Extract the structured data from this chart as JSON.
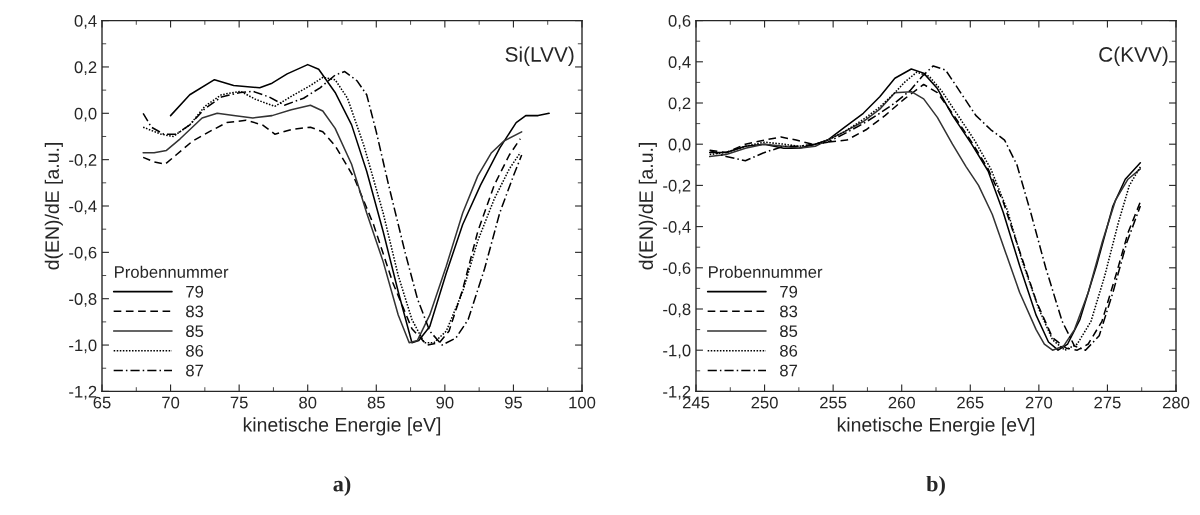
{
  "chart_data": [
    {
      "type": "line",
      "ylabel": "d(EN)/dE [a.u.]",
      "xlabel": "kinetische Energie [eV]",
      "legend_title": "Probennummer",
      "legend": "bottom left",
      "annotations": [
        "Si(LVV)",
        "a)"
      ],
      "xlim": [
        65,
        100
      ],
      "xticks": [
        65,
        70,
        75,
        80,
        85,
        90,
        95,
        100
      ],
      "ylim": [
        -1.2,
        0.4
      ],
      "yticks": [
        {
          "value": -1.2,
          "label": "-1,2"
        },
        {
          "value": -1.0,
          "label": "-1,0"
        },
        {
          "value": -0.8,
          "label": "-0,8"
        },
        {
          "value": -0.6,
          "label": "-0,6"
        },
        {
          "value": -0.4,
          "label": "-0,4"
        },
        {
          "value": -0.2,
          "label": "-0,2"
        },
        {
          "value": 0.0,
          "label": "0,0"
        },
        {
          "value": 0.2,
          "label": "0,2"
        },
        {
          "value": 0.4,
          "label": "0,4"
        }
      ],
      "series": [
        {
          "name": "79",
          "color": "#000000",
          "line_style": "solid",
          "x": [
            70,
            71.4,
            73.2,
            74.6,
            76.5,
            77.4,
            78.5,
            80.0,
            80.8,
            82.0,
            83.2,
            84.3,
            85.5,
            86.6,
            87.6,
            88.1,
            88.9,
            90.1,
            91.3,
            92.6,
            94.0,
            95.2,
            95.9,
            96.8,
            97.6
          ],
          "values": [
            -0.01,
            0.08,
            0.145,
            0.12,
            0.11,
            0.13,
            0.17,
            0.21,
            0.19,
            0.09,
            -0.05,
            -0.25,
            -0.51,
            -0.77,
            -0.99,
            -0.98,
            -0.92,
            -0.69,
            -0.48,
            -0.31,
            -0.15,
            -0.04,
            -0.01,
            -0.01,
            0.0
          ]
        },
        {
          "name": "83",
          "color": "#000000",
          "line_style": "dashed",
          "x": [
            68.0,
            68.8,
            69.6,
            70.4,
            71.6,
            72.8,
            74.1,
            75.5,
            76.7,
            77.6,
            78.8,
            80.2,
            81.1,
            82.0,
            83.4,
            84.8,
            86.2,
            87.6,
            88.7,
            89.6,
            90.3,
            91.3,
            92.4,
            93.6,
            94.7,
            95.5
          ],
          "values": [
            -0.19,
            -0.21,
            -0.22,
            -0.18,
            -0.12,
            -0.08,
            -0.04,
            -0.03,
            -0.05,
            -0.09,
            -0.07,
            -0.06,
            -0.08,
            -0.14,
            -0.28,
            -0.48,
            -0.73,
            -0.93,
            -1.0,
            -0.99,
            -0.94,
            -0.76,
            -0.51,
            -0.31,
            -0.18,
            -0.11
          ]
        },
        {
          "name": "85",
          "color": "#333333",
          "line_style": "solid",
          "x": [
            68.0,
            68.8,
            69.7,
            70.7,
            72.3,
            73.4,
            74.6,
            76.0,
            77.4,
            78.8,
            80.2,
            81.1,
            82.0,
            83.2,
            84.3,
            85.5,
            86.6,
            87.4,
            88.0,
            88.9,
            90.1,
            91.3,
            92.4,
            93.4,
            94.3,
            95.6
          ],
          "values": [
            -0.17,
            -0.17,
            -0.16,
            -0.11,
            -0.02,
            0.0,
            -0.01,
            -0.02,
            -0.01,
            0.015,
            0.035,
            0.01,
            -0.065,
            -0.22,
            -0.43,
            -0.64,
            -0.87,
            -0.99,
            -0.98,
            -0.87,
            -0.66,
            -0.43,
            -0.27,
            -0.17,
            -0.12,
            -0.08
          ]
        },
        {
          "name": "86",
          "color": "#000000",
          "line_style": "dotted",
          "x": [
            68.0,
            69.3,
            70.2,
            71.4,
            72.5,
            73.7,
            75.1,
            76.2,
            77.6,
            79.0,
            80.2,
            81.1,
            82.0,
            82.9,
            84.1,
            85.5,
            86.6,
            87.6,
            88.5,
            89.2,
            90.1,
            91.3,
            92.4,
            93.6,
            94.7,
            95.5
          ],
          "values": [
            -0.06,
            -0.09,
            -0.1,
            -0.05,
            0.03,
            0.08,
            0.095,
            0.06,
            0.03,
            0.08,
            0.12,
            0.155,
            0.145,
            0.065,
            -0.14,
            -0.43,
            -0.7,
            -0.89,
            -0.99,
            -0.99,
            -0.94,
            -0.77,
            -0.55,
            -0.37,
            -0.24,
            -0.17
          ]
        },
        {
          "name": "87",
          "color": "#000000",
          "line_style": "dashdot",
          "x": [
            68.0,
            68.6,
            69.5,
            70.4,
            71.4,
            72.5,
            73.7,
            75.1,
            76.0,
            77.2,
            78.3,
            79.7,
            80.9,
            82.0,
            82.7,
            83.6,
            84.3,
            85.0,
            85.9,
            87.1,
            88.0,
            88.9,
            89.8,
            90.8,
            91.7,
            92.9,
            94.0,
            95.0,
            95.6
          ],
          "values": [
            0.0,
            -0.06,
            -0.09,
            -0.09,
            -0.05,
            0.02,
            0.07,
            0.09,
            0.095,
            0.07,
            0.035,
            0.065,
            0.11,
            0.165,
            0.18,
            0.14,
            0.08,
            -0.08,
            -0.31,
            -0.6,
            -0.8,
            -0.94,
            -1.0,
            -0.97,
            -0.89,
            -0.67,
            -0.43,
            -0.27,
            -0.18
          ]
        }
      ]
    },
    {
      "type": "line",
      "ylabel": "d(EN)/dE [a.u.]",
      "xlabel": "kinetische Energie [eV]",
      "legend_title": "Probennummer",
      "legend": "bottom left",
      "annotations": [
        "C(KVV)",
        "b)"
      ],
      "xlim": [
        245,
        280
      ],
      "xticks": [
        245,
        250,
        255,
        260,
        265,
        270,
        275,
        280
      ],
      "ylim": [
        -1.2,
        0.6
      ],
      "yticks": [
        {
          "value": -1.2,
          "label": "-1,2"
        },
        {
          "value": -1.0,
          "label": "-1,0"
        },
        {
          "value": -0.8,
          "label": "-0,8"
        },
        {
          "value": -0.6,
          "label": "-0,6"
        },
        {
          "value": -0.4,
          "label": "-0,4"
        },
        {
          "value": -0.2,
          "label": "-0,2"
        },
        {
          "value": 0.0,
          "label": "0,0"
        },
        {
          "value": 0.2,
          "label": "0,2"
        },
        {
          "value": 0.4,
          "label": "0,4"
        },
        {
          "value": 0.6,
          "label": "0,6"
        }
      ],
      "series": [
        {
          "name": "79",
          "color": "#000000",
          "line_style": "solid",
          "x": [
            246.0,
            247.2,
            248.6,
            250.0,
            251.4,
            252.5,
            253.7,
            254.6,
            255.8,
            257.2,
            258.4,
            259.5,
            260.7,
            261.6,
            262.6,
            263.7,
            265.1,
            266.3,
            267.4,
            268.6,
            269.8,
            270.7,
            271.4,
            272.1,
            273.0,
            274.2,
            275.4,
            276.3,
            277.4
          ],
          "values": [
            -0.04,
            -0.04,
            -0.01,
            0.0,
            -0.02,
            -0.02,
            0.0,
            0.02,
            0.08,
            0.15,
            0.23,
            0.32,
            0.365,
            0.345,
            0.27,
            0.14,
            0.0,
            -0.13,
            -0.33,
            -0.59,
            -0.83,
            -0.96,
            -1.0,
            -0.97,
            -0.85,
            -0.59,
            -0.3,
            -0.17,
            -0.09
          ]
        },
        {
          "name": "83",
          "color": "#000000",
          "line_style": "dashed",
          "x": [
            246.0,
            247.2,
            248.6,
            250.0,
            251.2,
            252.3,
            253.5,
            254.6,
            256.0,
            257.4,
            258.8,
            260.2,
            261.6,
            262.6,
            263.7,
            265.1,
            266.3,
            267.4,
            268.6,
            269.8,
            271.0,
            272.0,
            272.8,
            273.6,
            274.6,
            275.6,
            276.5,
            277.4
          ],
          "values": [
            -0.03,
            -0.04,
            0.0,
            0.02,
            0.035,
            0.02,
            0.0,
            0.01,
            0.02,
            0.07,
            0.14,
            0.22,
            0.29,
            0.25,
            0.15,
            0.01,
            -0.12,
            -0.28,
            -0.52,
            -0.76,
            -0.94,
            -0.99,
            -1.0,
            -0.97,
            -0.86,
            -0.64,
            -0.43,
            -0.28
          ]
        },
        {
          "name": "85",
          "color": "#333333",
          "line_style": "solid",
          "x": [
            246.0,
            247.2,
            248.6,
            250.0,
            251.4,
            252.5,
            253.7,
            254.6,
            255.8,
            257.2,
            258.4,
            259.5,
            260.7,
            261.6,
            262.6,
            263.7,
            264.7,
            265.6,
            266.6,
            267.6,
            268.6,
            269.8,
            270.4,
            271.0,
            271.8,
            272.6,
            273.6,
            274.6,
            275.6,
            276.5,
            277.4
          ],
          "values": [
            -0.06,
            -0.05,
            -0.02,
            0.0,
            -0.01,
            -0.02,
            -0.01,
            0.02,
            0.06,
            0.11,
            0.17,
            0.25,
            0.255,
            0.22,
            0.13,
            0.0,
            -0.11,
            -0.2,
            -0.34,
            -0.53,
            -0.72,
            -0.9,
            -0.97,
            -1.0,
            -0.98,
            -0.9,
            -0.72,
            -0.48,
            -0.27,
            -0.17,
            -0.12
          ]
        },
        {
          "name": "86",
          "color": "#000000",
          "line_style": "dotted",
          "x": [
            246.0,
            247.2,
            248.6,
            250.0,
            251.4,
            252.5,
            253.7,
            254.6,
            255.8,
            257.2,
            258.4,
            259.5,
            260.2,
            261.1,
            262.0,
            262.9,
            264.0,
            265.3,
            266.5,
            267.7,
            268.8,
            270.0,
            271.0,
            271.9,
            272.8,
            273.8,
            274.8,
            275.8,
            276.6,
            277.4
          ],
          "values": [
            -0.05,
            -0.04,
            -0.01,
            0.01,
            0.0,
            -0.01,
            0.0,
            0.02,
            0.06,
            0.12,
            0.18,
            0.25,
            0.3,
            0.35,
            0.33,
            0.26,
            0.15,
            0.02,
            -0.12,
            -0.32,
            -0.57,
            -0.8,
            -0.95,
            -1.0,
            -0.97,
            -0.86,
            -0.64,
            -0.38,
            -0.2,
            -0.11
          ]
        },
        {
          "name": "87",
          "color": "#000000",
          "line_style": "dashdot",
          "x": [
            246.0,
            247.2,
            248.6,
            250.0,
            251.4,
            252.5,
            253.7,
            254.6,
            255.8,
            257.2,
            258.4,
            259.5,
            260.6,
            261.5,
            262.3,
            263.2,
            264.4,
            265.4,
            266.5,
            267.5,
            268.4,
            269.4,
            270.5,
            271.7,
            272.6,
            273.4,
            274.4,
            275.4,
            276.4,
            277.4
          ],
          "values": [
            -0.03,
            -0.06,
            -0.08,
            -0.04,
            -0.01,
            -0.01,
            0.0,
            0.01,
            0.05,
            0.1,
            0.15,
            0.2,
            0.26,
            0.33,
            0.38,
            0.36,
            0.24,
            0.14,
            0.07,
            0.02,
            -0.1,
            -0.33,
            -0.6,
            -0.86,
            -0.98,
            -1.0,
            -0.93,
            -0.72,
            -0.48,
            -0.3
          ]
        }
      ]
    }
  ]
}
